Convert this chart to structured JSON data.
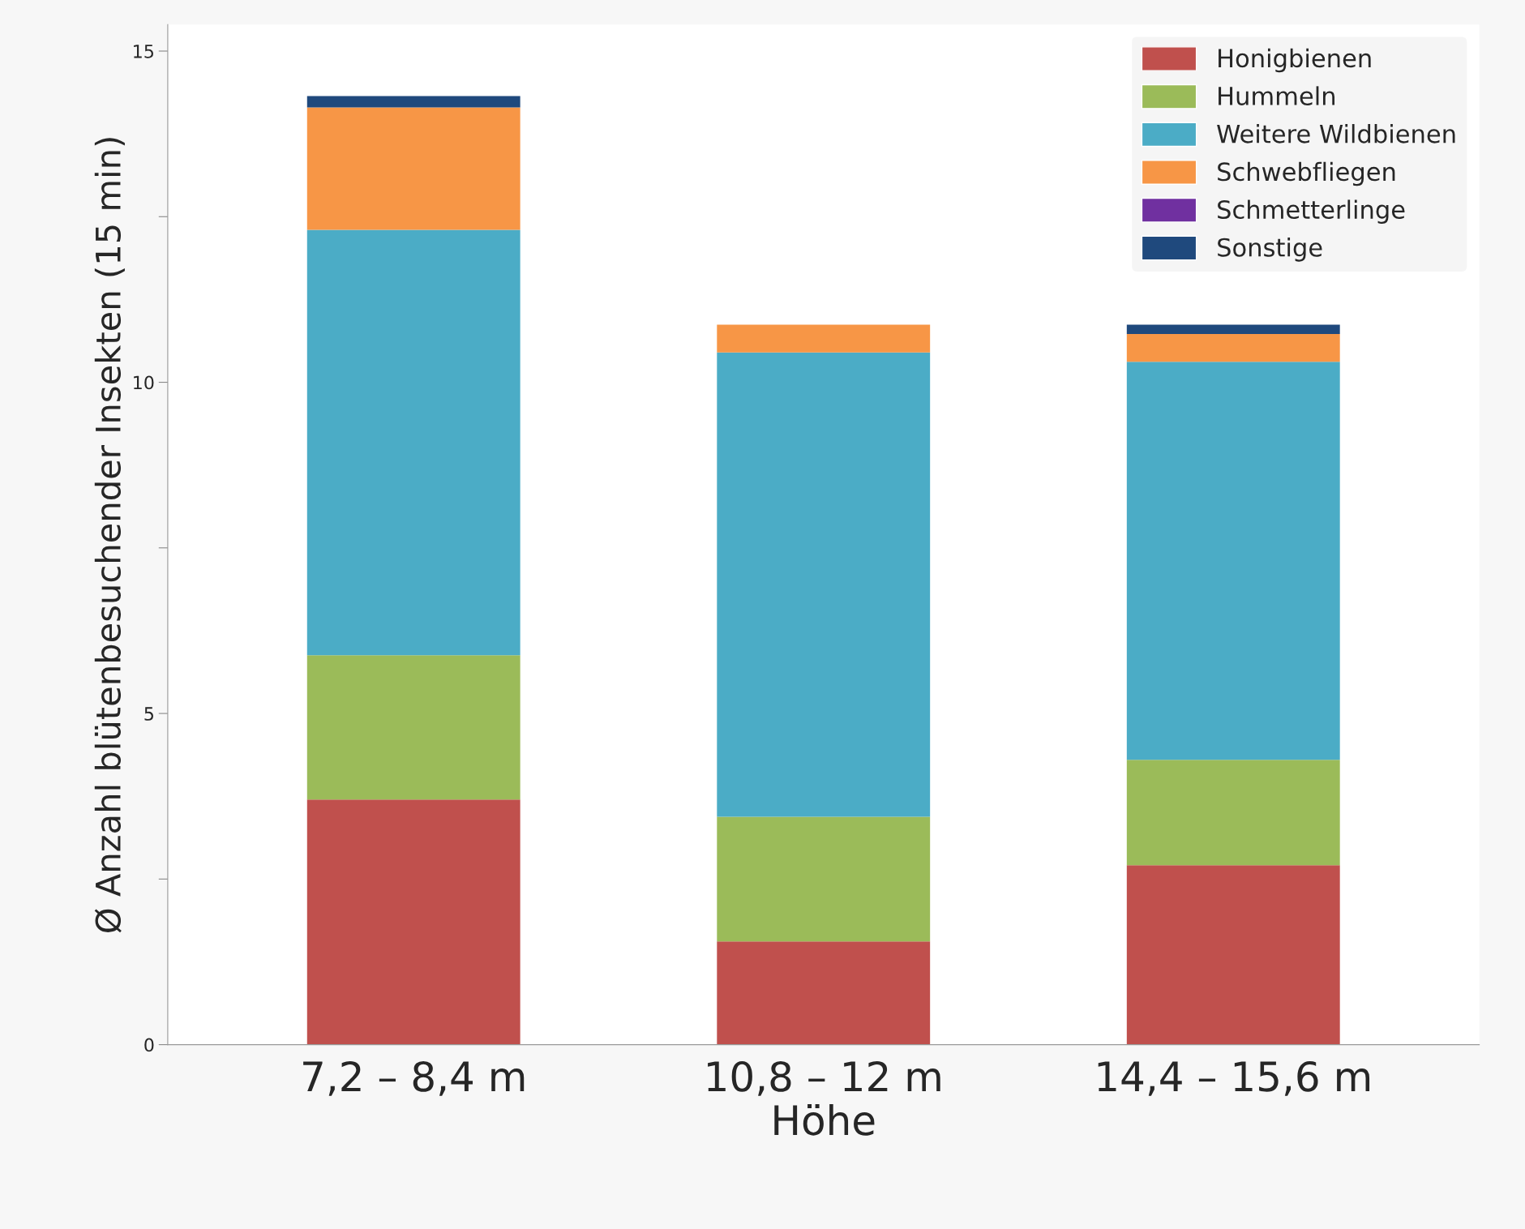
{
  "chart_data": {
    "type": "bar",
    "stacked": true,
    "xlabel": "Höhe",
    "ylabel": "Ø Anzahl blütenbesuchender Insekten (15 min)",
    "categories": [
      "7,2 – 8,4 m",
      "10,8 – 12 m",
      "14,4 – 15,6 m"
    ],
    "series": [
      {
        "name": "Honigbienen",
        "color": "#c0504d",
        "values": [
          3.7,
          1.56,
          2.71
        ]
      },
      {
        "name": "Hummeln",
        "color": "#9bbb59",
        "values": [
          2.18,
          1.88,
          1.59
        ]
      },
      {
        "name": "Weitere Wildbienen",
        "color": "#4bacc6",
        "values": [
          6.42,
          7.01,
          6.01
        ]
      },
      {
        "name": "Schwebfliegen",
        "color": "#f79646",
        "values": [
          1.85,
          0.42,
          0.42
        ]
      },
      {
        "name": "Schmetterlinge",
        "color": "#7030a0",
        "values": [
          0,
          0,
          0
        ]
      },
      {
        "name": "Sonstige",
        "color": "#1f497d",
        "values": [
          0.17,
          0,
          0.14
        ]
      }
    ],
    "ylim": [
      0,
      15.4
    ],
    "yticks": [
      0,
      {
        "value": 2.5,
        "label": null
      },
      5,
      {
        "value": 7.5,
        "label": null
      },
      10,
      {
        "value": 12.5,
        "label": null
      },
      15
    ],
    "grid": false,
    "legend": "top right"
  }
}
